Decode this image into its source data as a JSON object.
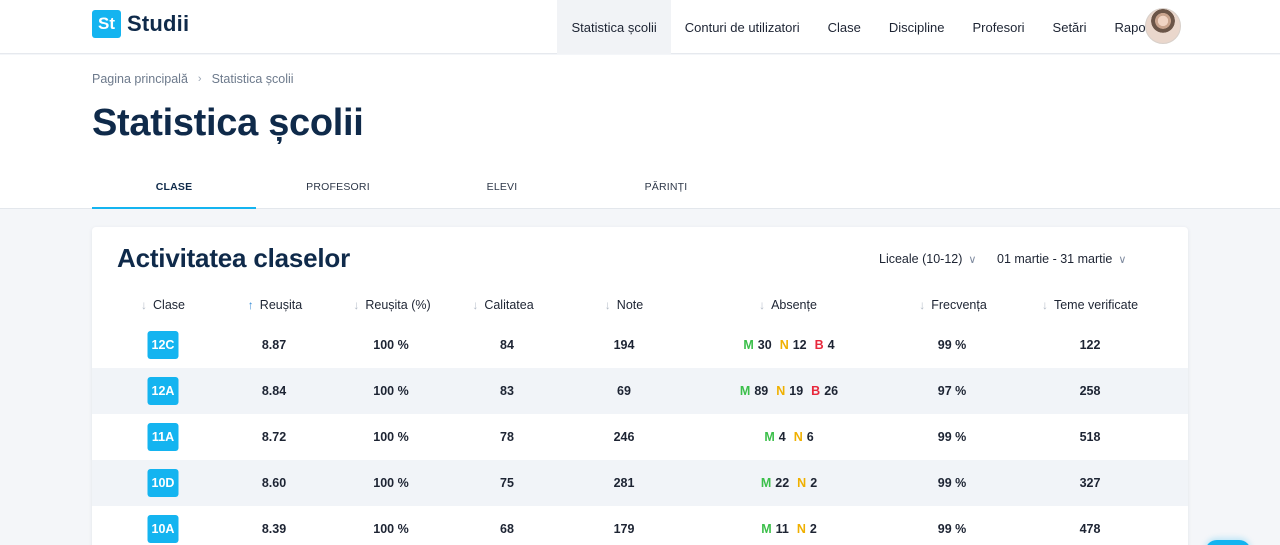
{
  "app": {
    "logo_badge": "St",
    "logo_text": "Studii"
  },
  "nav": {
    "items": [
      {
        "label": "Statistica școlii",
        "active": true
      },
      {
        "label": "Conturi de utilizatori"
      },
      {
        "label": "Clase"
      },
      {
        "label": "Discipline"
      },
      {
        "label": "Profesori"
      },
      {
        "label": "Setări"
      },
      {
        "label": "Rapoarte"
      }
    ]
  },
  "breadcrumb": {
    "home": "Pagina principală",
    "current": "Statistica școlii"
  },
  "page": {
    "title": "Statistica școlii"
  },
  "tabs": [
    {
      "label": "CLASE",
      "active": true
    },
    {
      "label": "PROFESORI"
    },
    {
      "label": "ELEVI"
    },
    {
      "label": "PĂRINȚI"
    }
  ],
  "card": {
    "title": "Activitatea claselor",
    "filter_level": "Liceale (10-12)",
    "filter_period": "01 martie - 31 martie"
  },
  "table": {
    "headers": [
      "Clase",
      "Reușita",
      "Reușita (%)",
      "Calitatea",
      "Note",
      "Absențe",
      "Frecvența",
      "Teme verificate"
    ],
    "rows": [
      {
        "clasa": "12C",
        "reusita": "8.87",
        "reusita_pct": "100 %",
        "calitatea": "84",
        "note": "194",
        "m": "30",
        "n": "12",
        "b": "4",
        "frecventa": "99 %",
        "teme": "122"
      },
      {
        "clasa": "12A",
        "reusita": "8.84",
        "reusita_pct": "100 %",
        "calitatea": "83",
        "note": "69",
        "m": "89",
        "n": "19",
        "b": "26",
        "frecventa": "97 %",
        "teme": "258"
      },
      {
        "clasa": "11A",
        "reusita": "8.72",
        "reusita_pct": "100 %",
        "calitatea": "78",
        "note": "246",
        "m": "4",
        "n": "6",
        "b": null,
        "frecventa": "99 %",
        "teme": "518"
      },
      {
        "clasa": "10D",
        "reusita": "8.60",
        "reusita_pct": "100 %",
        "calitatea": "75",
        "note": "281",
        "m": "22",
        "n": "2",
        "b": null,
        "frecventa": "99 %",
        "teme": "327"
      },
      {
        "clasa": "10A",
        "reusita": "8.39",
        "reusita_pct": "100 %",
        "calitatea": "68",
        "note": "179",
        "m": "11",
        "n": "2",
        "b": null,
        "frecventa": "99 %",
        "teme": "478"
      }
    ],
    "absence_keys": {
      "m": "M",
      "n": "N",
      "b": "B"
    }
  },
  "colors": {
    "accent": "#14b4f0",
    "title": "#0f2a4a",
    "motivated": "#3bbf4a",
    "unmotivated": "#f0b000",
    "bad": "#e8283c"
  }
}
